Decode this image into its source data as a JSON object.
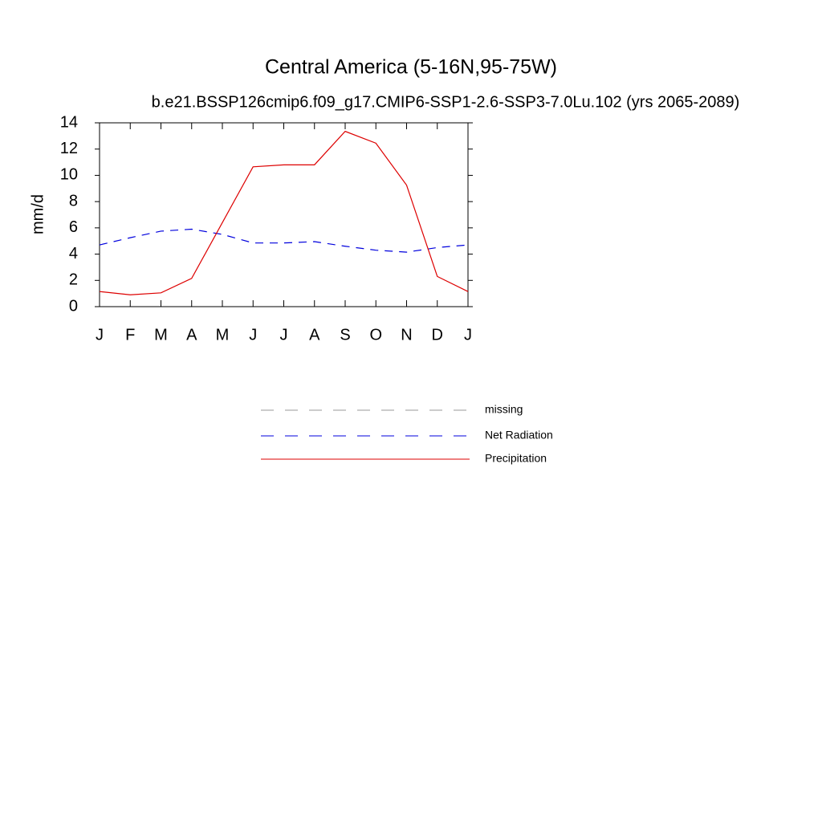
{
  "chart_data": {
    "type": "line",
    "title": "Central America (5-16N,95-75W)",
    "subtitle": "b.e21.BSSP126cmip6.f09_g17.CMIP6-SSP1-2.6-SSP3-7.0Lu.102 (yrs 2065-2089)",
    "y_label": "mm/d",
    "categories": [
      "J",
      "F",
      "M",
      "A",
      "M",
      "J",
      "J",
      "A",
      "S",
      "O",
      "N",
      "D",
      "J"
    ],
    "ylim": [
      0,
      14
    ],
    "yticks": [
      0,
      2,
      4,
      6,
      8,
      10,
      12,
      14
    ],
    "series": [
      {
        "name": "missing",
        "color": "#999999",
        "dash": true,
        "values": [
          null,
          null,
          null,
          null,
          null,
          null,
          null,
          null,
          null,
          null,
          null,
          null,
          null
        ]
      },
      {
        "name": "Net Radiation",
        "color": "#0000dd",
        "dash": true,
        "values": [
          4.7,
          5.25,
          5.75,
          5.9,
          5.5,
          4.85,
          4.85,
          4.95,
          4.6,
          4.3,
          4.15,
          4.5,
          4.7
        ]
      },
      {
        "name": "Precipitation",
        "color": "#dd0000",
        "dash": false,
        "values": [
          1.15,
          0.9,
          1.05,
          2.15,
          6.4,
          10.65,
          10.8,
          10.8,
          13.35,
          12.45,
          9.25,
          2.3,
          1.15
        ]
      }
    ]
  }
}
